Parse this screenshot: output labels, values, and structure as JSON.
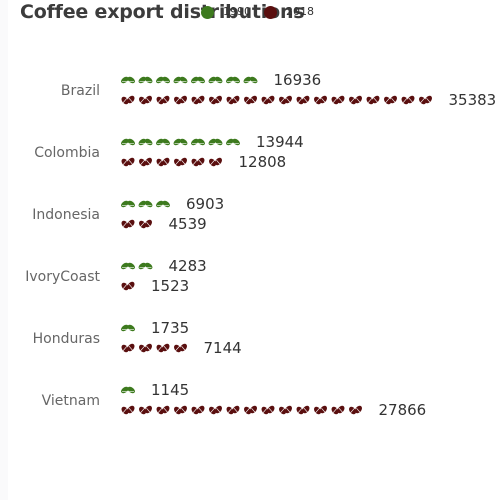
{
  "chart_data": {
    "type": "pictorial-bar",
    "title": "Coffee export distributions",
    "legend_position": "top",
    "categories": [
      "Brazil",
      "Colombia",
      "Indonesia",
      "IvoryCoast",
      "Honduras",
      "Vietnam"
    ],
    "series": [
      {
        "name": "1990",
        "values": [
          16936,
          13944,
          6903,
          4283,
          1735,
          1145
        ],
        "color": "#3d7a1e",
        "symbol": "coffee-leaf-icon"
      },
      {
        "name": "2018",
        "values": [
          35383,
          12808,
          4539,
          1523,
          7144,
          27866
        ],
        "color": "#5a0f0f",
        "symbol": "coffee-bean-icon"
      }
    ],
    "symbol_unit": 2000
  }
}
